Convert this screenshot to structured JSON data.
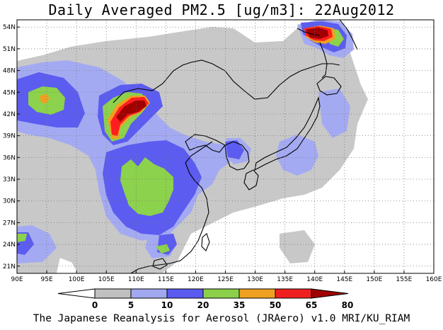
{
  "title": "Daily Averaged PM2.5 [ug/m3]: 22Aug2012",
  "footer": "The Japanese Reanalysis for Aerosol (JRAero) v1.0 MRI/KU_RIAM",
  "axes": {
    "lon_labels": [
      "90E",
      "95E",
      "100E",
      "105E",
      "110E",
      "115E",
      "120E",
      "125E",
      "130E",
      "135E",
      "140E",
      "145E",
      "150E",
      "155E",
      "160E"
    ],
    "lat_labels": [
      "54N",
      "51N",
      "48N",
      "45N",
      "42N",
      "39N",
      "36N",
      "33N",
      "30N",
      "27N",
      "24N",
      "21N"
    ],
    "lon_range": [
      90,
      160
    ],
    "lat_range": [
      20,
      55
    ]
  },
  "colorbar": {
    "levels": [
      "0",
      "5",
      "10",
      "20",
      "35",
      "50",
      "65",
      "80"
    ],
    "colors": [
      "#ffffff",
      "#c0c0c0",
      "#a0a8f0",
      "#5a5af0",
      "#8cd04a",
      "#f0a020",
      "#f02020",
      "#a00000"
    ]
  },
  "palette": {
    "gray": "#c8c8c8",
    "lightblue": "#a4aaf2",
    "blue": "#5c5cf0",
    "green": "#8cd24c",
    "orange": "#f0a020",
    "red": "#ff1e1e",
    "darkred": "#a00000"
  }
}
